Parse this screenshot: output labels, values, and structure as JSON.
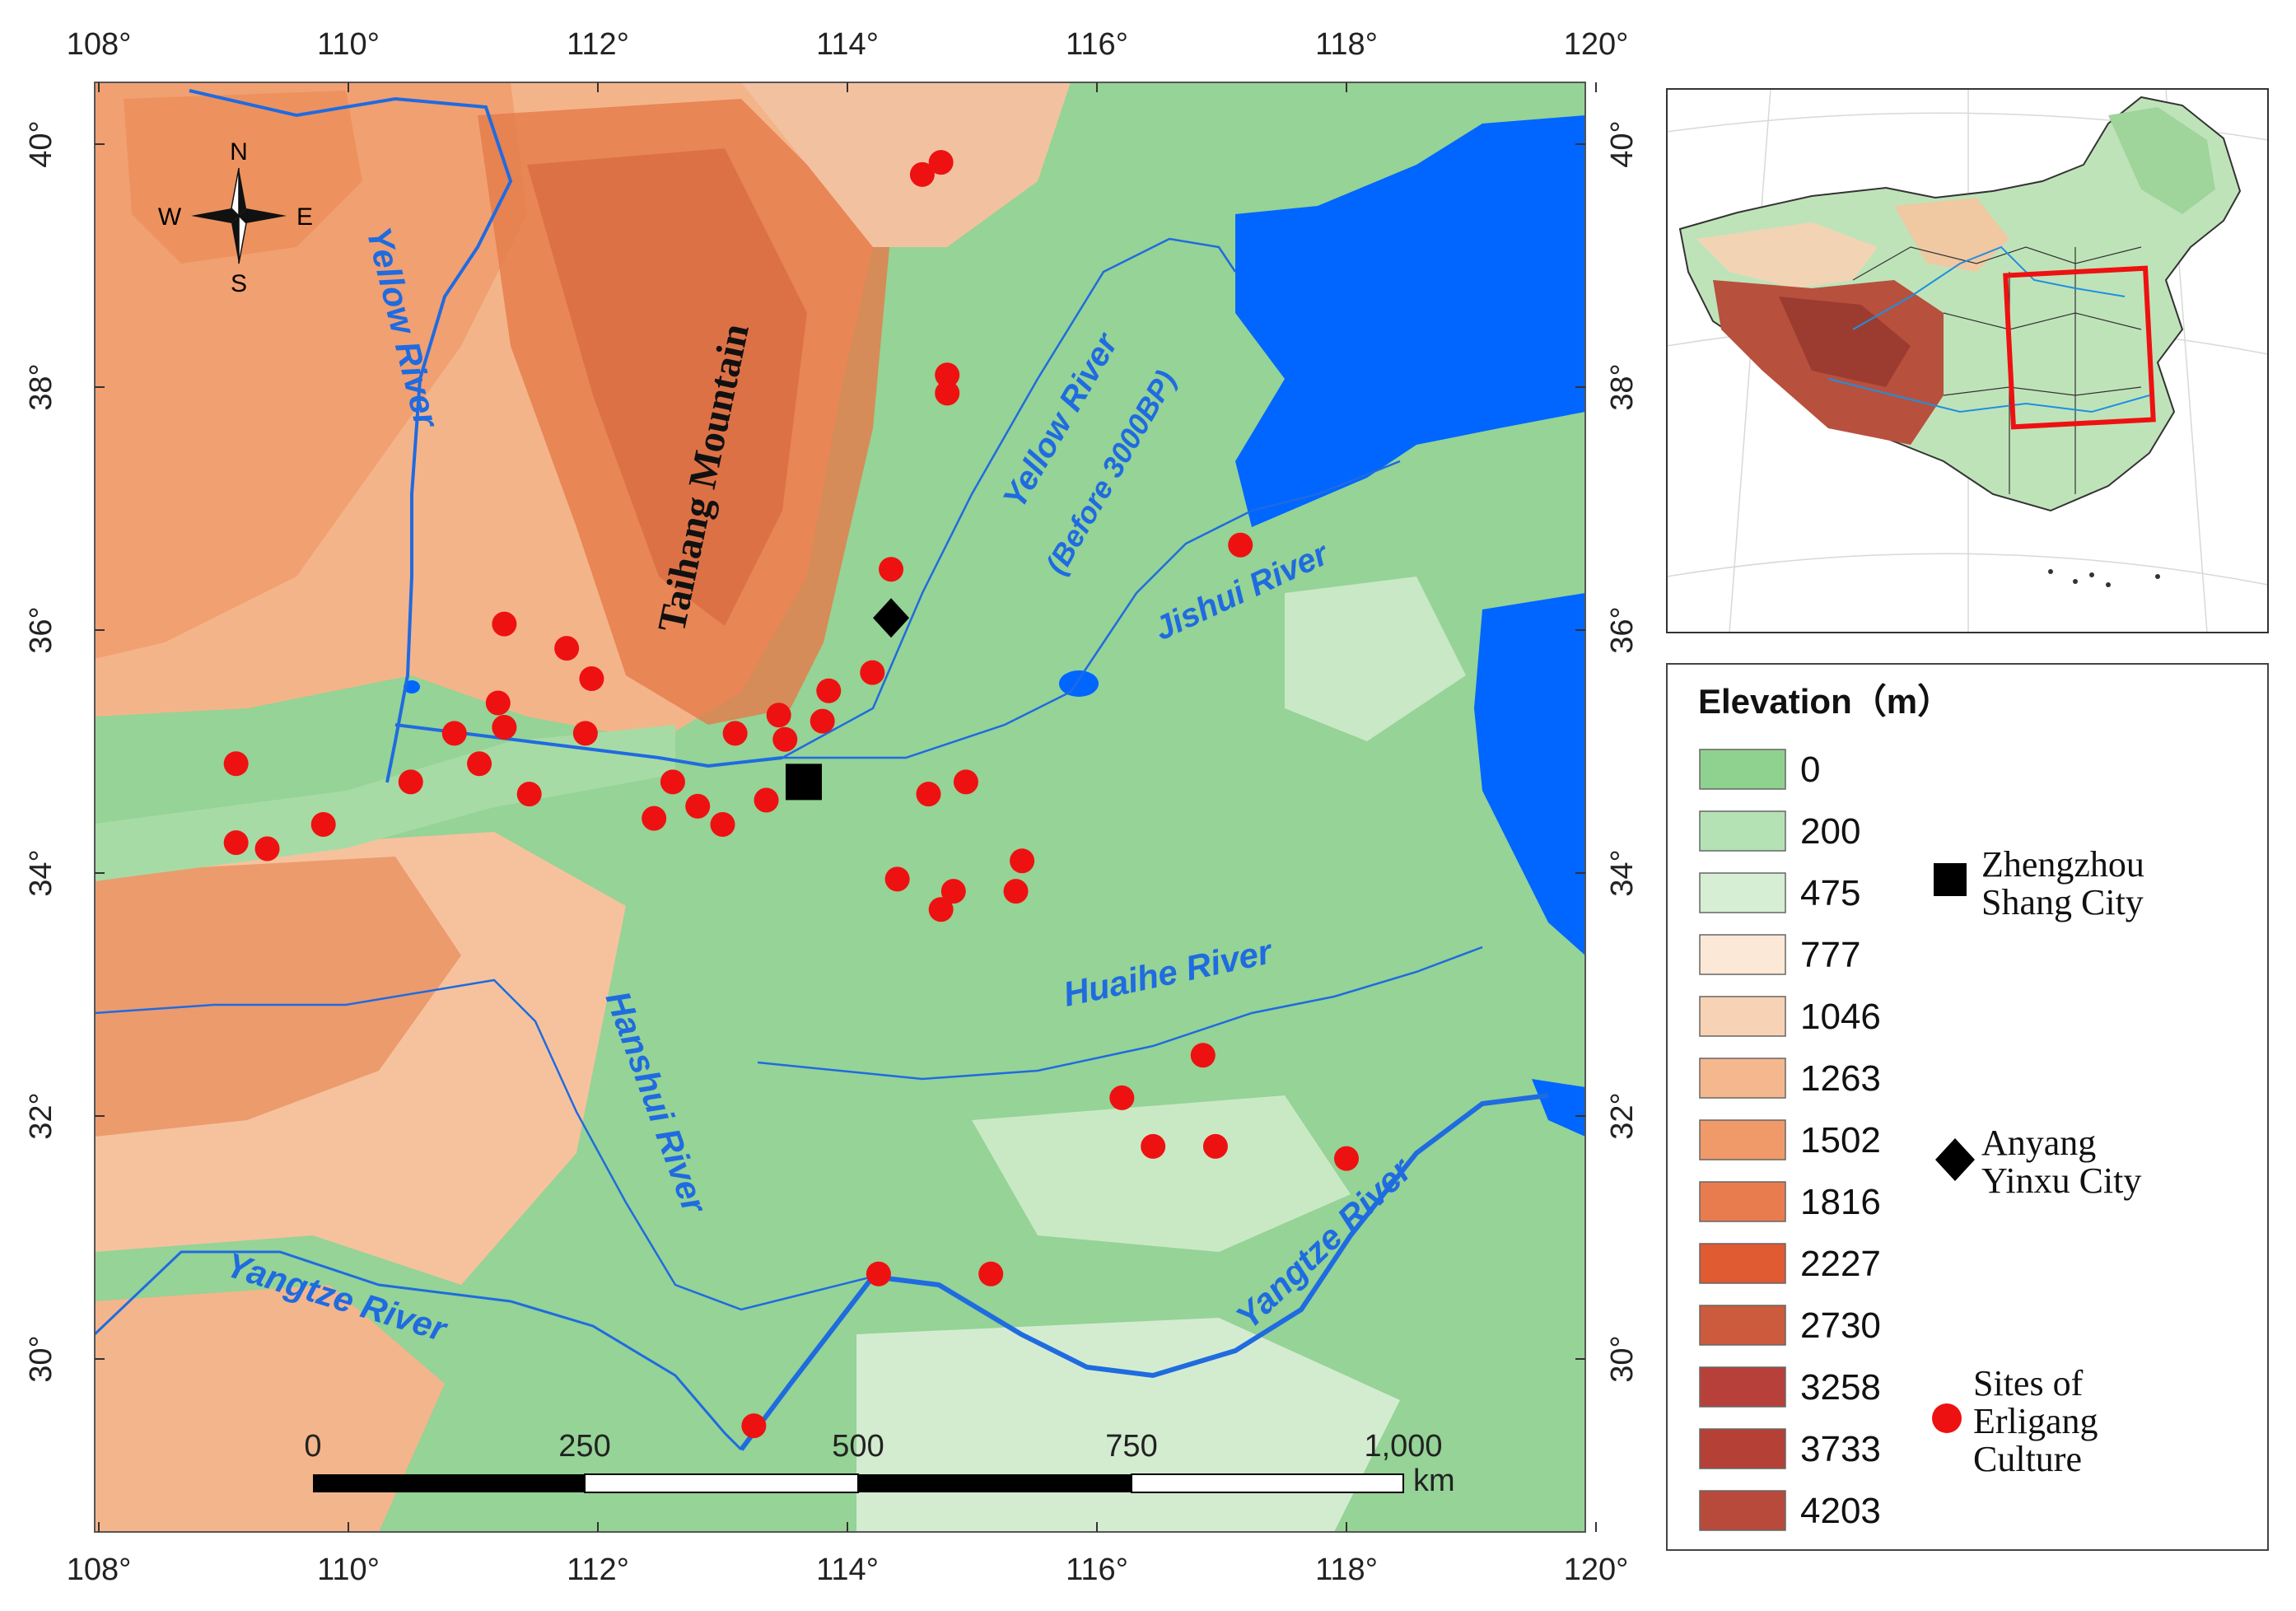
{
  "map": {
    "x_ticks": [
      "108°",
      "110°",
      "112°",
      "114°",
      "116°",
      "118°",
      "120°"
    ],
    "y_ticks": [
      "40°",
      "38°",
      "36°",
      "34°",
      "32°",
      "30°"
    ],
    "compass": {
      "n": "N",
      "s": "S",
      "e": "E",
      "w": "W"
    },
    "labels": {
      "yellow_river": "Yellow River",
      "yellow_river_old": "Yellow River",
      "before_3000bp": "(Before 3000BP)",
      "jishui_river": "Jishui River",
      "huaihe_river": "Huaihe River",
      "hanshui_river": "Hanshui River",
      "yangtze_river_west": "Yangtze River",
      "yangtze_river_east": "Yangtze River",
      "taihang_mountain": "Taihang Mountain"
    },
    "scale_bar": {
      "ticks": [
        "0",
        "250",
        "500",
        "750",
        "1,000"
      ],
      "unit": "km"
    },
    "sites": [
      {
        "lon": 114.6,
        "lat": 39.75
      },
      {
        "lon": 114.75,
        "lat": 39.85
      },
      {
        "lon": 114.8,
        "lat": 38.1
      },
      {
        "lon": 114.8,
        "lat": 37.95
      },
      {
        "lon": 114.35,
        "lat": 36.5
      },
      {
        "lon": 117.15,
        "lat": 36.7
      },
      {
        "lon": 111.25,
        "lat": 36.05
      },
      {
        "lon": 111.75,
        "lat": 35.85
      },
      {
        "lon": 111.95,
        "lat": 35.6
      },
      {
        "lon": 111.2,
        "lat": 35.4
      },
      {
        "lon": 111.25,
        "lat": 35.2
      },
      {
        "lon": 110.85,
        "lat": 35.15
      },
      {
        "lon": 111.9,
        "lat": 35.15
      },
      {
        "lon": 111.05,
        "lat": 34.9
      },
      {
        "lon": 110.5,
        "lat": 34.75
      },
      {
        "lon": 111.45,
        "lat": 34.65
      },
      {
        "lon": 109.1,
        "lat": 34.9
      },
      {
        "lon": 109.1,
        "lat": 34.25
      },
      {
        "lon": 109.35,
        "lat": 34.2
      },
      {
        "lon": 109.8,
        "lat": 34.4
      },
      {
        "lon": 112.6,
        "lat": 34.75
      },
      {
        "lon": 112.45,
        "lat": 34.45
      },
      {
        "lon": 112.8,
        "lat": 34.55
      },
      {
        "lon": 113.0,
        "lat": 34.4
      },
      {
        "lon": 113.35,
        "lat": 34.6
      },
      {
        "lon": 113.1,
        "lat": 35.15
      },
      {
        "lon": 113.45,
        "lat": 35.3
      },
      {
        "lon": 113.5,
        "lat": 35.1
      },
      {
        "lon": 113.8,
        "lat": 35.25
      },
      {
        "lon": 113.85,
        "lat": 35.5
      },
      {
        "lon": 114.2,
        "lat": 35.65
      },
      {
        "lon": 114.65,
        "lat": 34.65
      },
      {
        "lon": 114.95,
        "lat": 34.75
      },
      {
        "lon": 114.4,
        "lat": 33.95
      },
      {
        "lon": 114.85,
        "lat": 33.85
      },
      {
        "lon": 114.75,
        "lat": 33.7
      },
      {
        "lon": 115.4,
        "lat": 34.1
      },
      {
        "lon": 115.35,
        "lat": 33.85
      },
      {
        "lon": 116.85,
        "lat": 32.5
      },
      {
        "lon": 116.2,
        "lat": 32.15
      },
      {
        "lon": 116.45,
        "lat": 31.75
      },
      {
        "lon": 116.95,
        "lat": 31.75
      },
      {
        "lon": 118.0,
        "lat": 31.65
      },
      {
        "lon": 114.25,
        "lat": 30.7
      },
      {
        "lon": 115.15,
        "lat": 30.7
      },
      {
        "lon": 113.25,
        "lat": 29.45
      }
    ],
    "zhengzhou": {
      "lon": 113.65,
      "lat": 34.75
    },
    "anyang": {
      "lon": 114.35,
      "lat": 36.1
    }
  },
  "legend": {
    "title": "Elevation（m）",
    "classes": [
      {
        "value": "0",
        "color": "#8fd18f"
      },
      {
        "value": "200",
        "color": "#b5e2b5"
      },
      {
        "value": "475",
        "color": "#d6eed3"
      },
      {
        "value": "777",
        "color": "#fbe8d6"
      },
      {
        "value": "1046",
        "color": "#f8d2b4"
      },
      {
        "value": "1263",
        "color": "#f5b88e"
      },
      {
        "value": "1502",
        "color": "#f09a6a"
      },
      {
        "value": "1816",
        "color": "#e97c4f"
      },
      {
        "value": "2227",
        "color": "#e05a32"
      },
      {
        "value": "2730",
        "color": "#cc5a3c"
      },
      {
        "value": "3258",
        "color": "#b8403a"
      },
      {
        "value": "3733",
        "color": "#b54036"
      },
      {
        "value": "4203",
        "color": "#b84a3c"
      }
    ],
    "symbols": {
      "zhengzhou_line1": "Zhengzhou",
      "zhengzhou_line2": "Shang City",
      "anyang_line1": "Anyang",
      "anyang_line2": "Yinxu City",
      "sites_line1": "Sites of",
      "sites_line2": "Erligang",
      "sites_line3": "Culture"
    }
  },
  "colors": {
    "plain": "#95d396",
    "water": "#0066ff",
    "river": "#2a7de1",
    "site": "#ee1111",
    "inset_frame": "#ee1111"
  }
}
